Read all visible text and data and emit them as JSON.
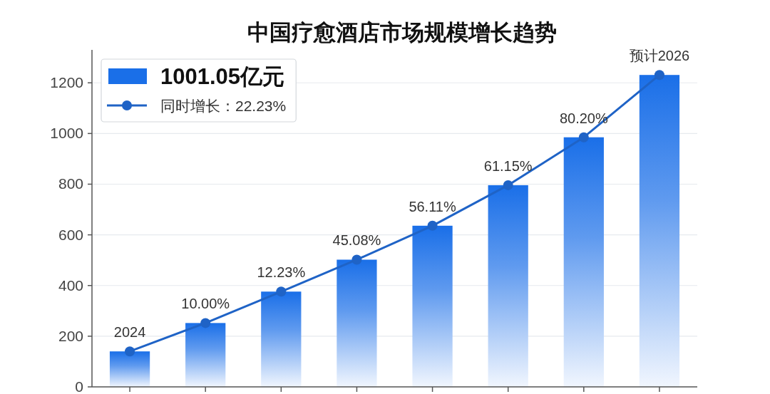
{
  "chart_data": {
    "type": "bar",
    "title": "中国疗愈酒店市场规模增长趋势",
    "categories": [
      null,
      null,
      null,
      null,
      null,
      null,
      null,
      null
    ],
    "series": [
      {
        "name": "1001.05亿元",
        "color": "#1a6fe8",
        "values": [
          140,
          252,
          376,
          502,
          636,
          796,
          985,
          1231
        ]
      },
      {
        "name": "同时增长：22.23%",
        "type": "line",
        "color": "#1f63c6",
        "values": [
          140,
          252,
          376,
          502,
          636,
          796,
          985,
          1231
        ]
      }
    ],
    "annotations": [
      {
        "text": "2024",
        "y": 140
      },
      {
        "text": "10.00%",
        "y": 252
      },
      {
        "text": "12.23%",
        "y": 376
      },
      {
        "text": "45.08%",
        "y": 502
      },
      {
        "text": "56.11%",
        "y": 636
      },
      {
        "text": "61.15%",
        "y": 796
      },
      {
        "text": "80.20%",
        "y": 985
      },
      {
        "text": "预计2026",
        "y": 1231
      }
    ],
    "ylim": [
      0,
      1330
    ],
    "yticks": [
      0,
      200,
      400,
      600,
      800,
      1000,
      1200
    ],
    "grid": "y",
    "legend": "top left",
    "marker": "circle"
  }
}
